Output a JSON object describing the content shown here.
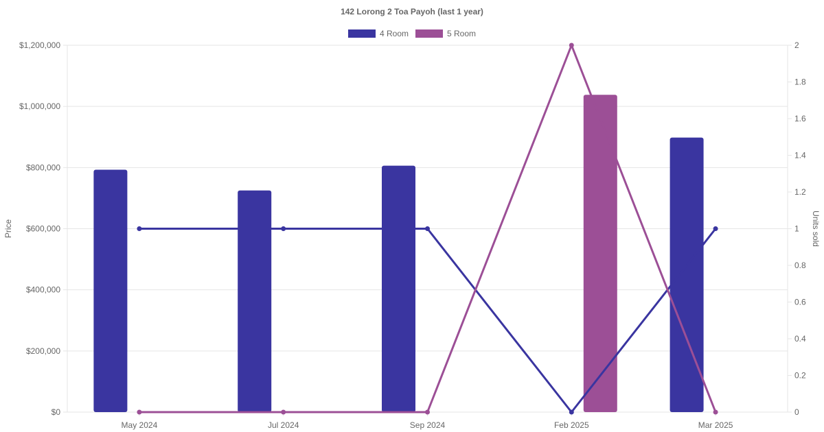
{
  "chart_data": {
    "type": "bar",
    "title": "142 Lorong 2 Toa Payoh (last 1 year)",
    "categories": [
      "May 2024",
      "Jul 2024",
      "Sep 2024",
      "Feb 2025",
      "Mar 2025"
    ],
    "series": [
      {
        "name": "4 Room",
        "type": "bar",
        "axis": "left",
        "color": "#3a35a0",
        "values": [
          793000,
          725000,
          806000,
          null,
          898000
        ]
      },
      {
        "name": "5 Room",
        "type": "bar",
        "axis": "left",
        "color": "#9c4f96",
        "values": [
          null,
          null,
          null,
          1038000,
          null
        ]
      },
      {
        "name": "4 Room",
        "type": "line",
        "axis": "right",
        "color": "#3a35a0",
        "values": [
          1,
          1,
          1,
          0,
          1
        ]
      },
      {
        "name": "5 Room",
        "type": "line",
        "axis": "right",
        "color": "#9c4f96",
        "values": [
          0,
          0,
          0,
          2,
          0
        ]
      }
    ],
    "ylabel": "Price",
    "y2label": "Units sold",
    "ylim": [
      0,
      1200000
    ],
    "y2lim": [
      0,
      2
    ],
    "yticks": [
      "$0",
      "$200,000",
      "$400,000",
      "$600,000",
      "$800,000",
      "$1,000,000",
      "$1,200,000"
    ],
    "y2ticks": [
      "0",
      "0.2",
      "0.4",
      "0.6",
      "0.8",
      "1",
      "1.2",
      "1.4",
      "1.6",
      "1.8",
      "2"
    ],
    "legend": [
      "4 Room",
      "5 Room"
    ],
    "legend_position": "top",
    "grid": true
  }
}
